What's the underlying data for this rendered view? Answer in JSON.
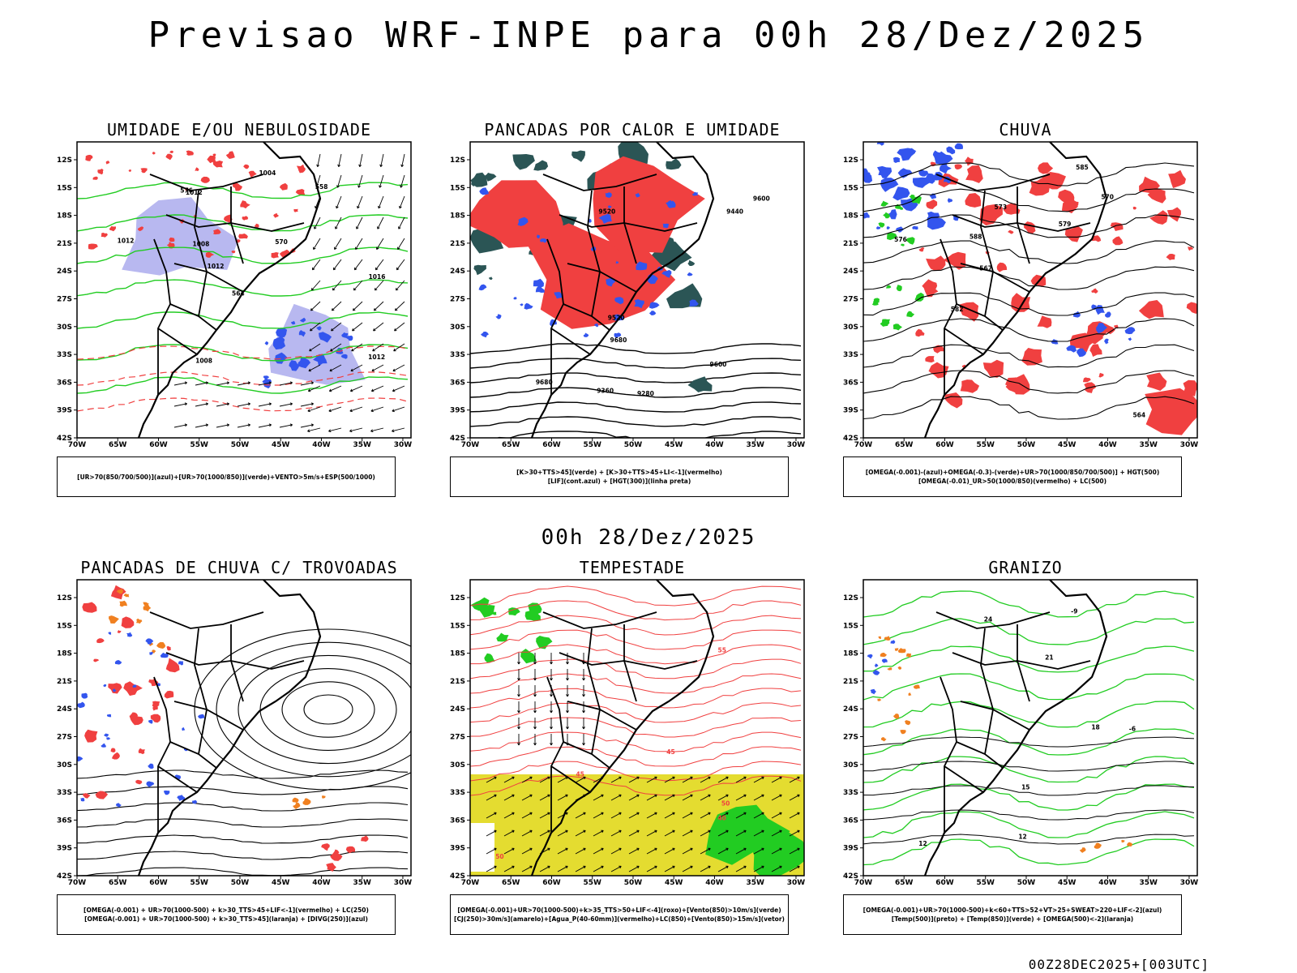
{
  "page": {
    "title": "Previsao WRF-INPE  para 00h 28/Dez/2025",
    "mid_title": "00h 28/Dez/2025",
    "footer": "00Z28DEC2025+[003UTC]"
  },
  "axes": {
    "lat_ticks": [
      "12S",
      "15S",
      "18S",
      "21S",
      "24S",
      "27S",
      "30S",
      "33S",
      "36S",
      "39S",
      "42S"
    ],
    "lon_ticks": [
      "70W",
      "65W",
      "60W",
      "55W",
      "50W",
      "45W",
      "40W",
      "35W",
      "30W"
    ]
  },
  "colors": {
    "red": "#f04040",
    "green": "#22cc22",
    "blue": "#3355ee",
    "lavender": "#b8b8f0",
    "dark_teal": "#2b5555",
    "orange": "#f08020",
    "yellow": "#e4dc30",
    "contour": "#000000"
  },
  "panels": [
    {
      "title": "UMIDADE E/OU NEBULOSIDADE",
      "legend": [
        "[UR>70(850/700/500)](azul)+[UR>70(1000/850)](verde)+VENTO>5m/s+ESP(500/1000)"
      ],
      "labels": [
        "1012",
        "1012",
        "1008",
        "1012",
        "1012",
        "1016",
        "1008",
        "1004",
        "576",
        "570",
        "564",
        "558"
      ]
    },
    {
      "title": "PANCADAS POR CALOR E UMIDADE",
      "legend": [
        "[K>30+TTS>45](verde) + [K>30+TTS>45+LI<-1](vermelho)",
        "[LIF](cont.azul) + [HGT(300)](linha preta)"
      ],
      "labels": [
        "9680",
        "9600",
        "9520",
        "9440",
        "9360",
        "9280",
        "9600",
        "9680",
        "9520"
      ]
    },
    {
      "title": "CHUVA",
      "legend": [
        "[OMEGA(-0.001)-(azul)+OMEGA(-0.3)-(verde)+UR>70(1000/850/700/500)] + HGT(500)",
        "[OMEGA(-0.01)_UR>50(1000/850)(vermelho) + LC(500)"
      ],
      "labels": [
        "588",
        "582",
        "579",
        "576",
        "573",
        "570",
        "567",
        "564",
        "585"
      ]
    },
    {
      "title": "PANCADAS DE CHUVA C/ TROVOADAS",
      "legend": [
        "[OMEGA(-0.001) + UR>70(1000-500) + k>30_TTS>45+LIF<-1](vermelho) + LC(250)",
        "[OMEGA(-0.001) + UR>70(1000-500) + k>30_TTS>45](laranja) + [DIVG(250)](azul)"
      ],
      "labels": []
    },
    {
      "title": "TEMPESTADE",
      "legend": [
        "[OMEGA(-0.001)+UR>70(1000-500)+k>35_TTS>50+LIF<-4](roxo)+[Vento(850)>10m/s](verde)",
        "[CJ(250)>30m/s](amarelo)+[Agua_P(40-60mm)](vermelho)+LC(850)+[Vento(850)>15m/s](vetor)"
      ],
      "labels": [
        "50",
        "45",
        "40",
        "55",
        "50",
        "45"
      ]
    },
    {
      "title": "GRANIZO",
      "legend": [
        "[OMEGA(-0.001)+UR>70(1000-500)+k<60+TTS>52+VT>25+SWEAT>220+LIF<-2](azul)",
        "[Temp(500)](preto) + [Temp(850)](verde) + [OMEGA(500)<-2](laranja)"
      ],
      "labels": [
        "12",
        "12",
        "15",
        "18",
        "21",
        "24",
        "-6",
        "-9"
      ]
    }
  ]
}
